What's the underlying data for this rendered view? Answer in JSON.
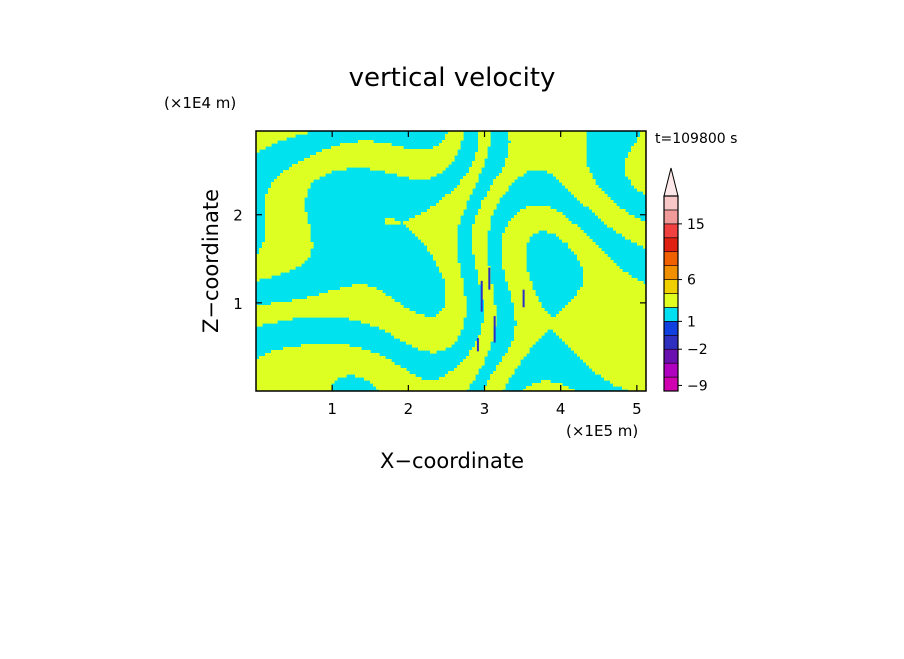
{
  "chart_data": {
    "type": "heatmap",
    "title": "vertical velocity",
    "xlabel": "X−coordinate",
    "ylabel": "Z−coordinate",
    "x_unit": "(×1E5 m)",
    "y_unit": "(×1E4 m)",
    "time_label": "t=109800 s",
    "xlim": [
      0,
      5.12
    ],
    "ylim": [
      0,
      2.95
    ],
    "x_ticks": [
      "1",
      "2",
      "3",
      "4",
      "5"
    ],
    "y_ticks": [
      "1",
      "2"
    ],
    "colorbar": {
      "tick_labels": [
        "15",
        "6",
        "1",
        "−2",
        "−9"
      ],
      "colors": [
        "#d000b0",
        "#b000c0",
        "#6a10b0",
        "#3030c0",
        "#1040e0",
        "#00e0f0",
        "#e0ff20",
        "#f0d000",
        "#f09000",
        "#f06000",
        "#e02010",
        "#f04040",
        "#f09a9a",
        "#f8c8c8"
      ],
      "extend_max": true
    },
    "field_colors": {
      "positive": "#deff22",
      "negative": "#00e3ee",
      "strong_negative": "#2a30c8",
      "strong_positive": "#f2a000"
    }
  }
}
